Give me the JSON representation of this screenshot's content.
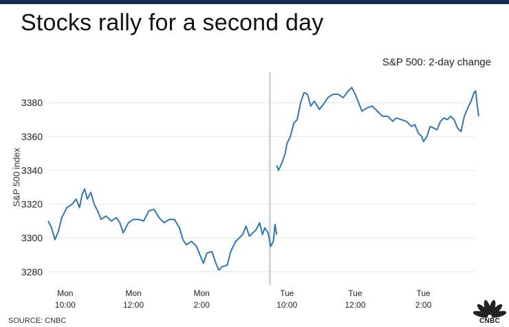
{
  "header": {
    "title": "Stocks rally for a second day",
    "subtitle": "S&P 500: 2-day change"
  },
  "footer": {
    "source": "SOURCE: CNBC",
    "logo_text": "CNBC"
  },
  "colors": {
    "line": "#2e75b6",
    "divider": "#c9d6e2",
    "grid": "#e6e6e6",
    "top_bar": "#1a2c52"
  },
  "chart_data": {
    "type": "line",
    "title": "Stocks rally for a second day",
    "subtitle": "S&P 500: 2-day change",
    "ylabel": "S&P 500 index",
    "xlabel": "",
    "ylim": [
      3273,
      3398
    ],
    "yticks": [
      3280,
      3300,
      3320,
      3340,
      3360,
      3380
    ],
    "grid": true,
    "xticks": [
      {
        "day": "Mon",
        "time": "10:00",
        "x": 0.5
      },
      {
        "day": "Mon",
        "time": "12:00",
        "x": 2.5
      },
      {
        "day": "Mon",
        "time": "2:00",
        "x": 4.5
      },
      {
        "day": "Tue",
        "time": "10:00",
        "x": 7.0
      },
      {
        "day": "Tue",
        "time": "12:00",
        "x": 9.0
      },
      {
        "day": "Tue",
        "time": "2:00",
        "x": 11.0
      }
    ],
    "xlim": [
      0,
      12.5
    ],
    "session_break": 6.5,
    "series": [
      {
        "session": "Mon",
        "points": [
          [
            0.0,
            3310
          ],
          [
            0.1,
            3306
          ],
          [
            0.2,
            3299
          ],
          [
            0.3,
            3304
          ],
          [
            0.4,
            3312
          ],
          [
            0.55,
            3318
          ],
          [
            0.7,
            3320
          ],
          [
            0.82,
            3323
          ],
          [
            0.92,
            3318
          ],
          [
            1.0,
            3326
          ],
          [
            1.07,
            3329
          ],
          [
            1.15,
            3323
          ],
          [
            1.25,
            3327
          ],
          [
            1.35,
            3320
          ],
          [
            1.45,
            3316
          ],
          [
            1.55,
            3311
          ],
          [
            1.7,
            3313
          ],
          [
            1.85,
            3310
          ],
          [
            2.0,
            3312
          ],
          [
            2.1,
            3309
          ],
          [
            2.2,
            3303
          ],
          [
            2.35,
            3309
          ],
          [
            2.5,
            3311
          ],
          [
            2.65,
            3311
          ],
          [
            2.8,
            3310
          ],
          [
            2.95,
            3316
          ],
          [
            3.1,
            3317
          ],
          [
            3.25,
            3312
          ],
          [
            3.4,
            3309
          ],
          [
            3.55,
            3311
          ],
          [
            3.7,
            3311
          ],
          [
            3.85,
            3306
          ],
          [
            3.95,
            3299
          ],
          [
            4.05,
            3296
          ],
          [
            4.2,
            3298
          ],
          [
            4.35,
            3295
          ],
          [
            4.45,
            3290
          ],
          [
            4.55,
            3285
          ],
          [
            4.65,
            3291
          ],
          [
            4.8,
            3292
          ],
          [
            4.9,
            3286
          ],
          [
            5.0,
            3281
          ],
          [
            5.1,
            3283
          ],
          [
            5.25,
            3284
          ],
          [
            5.35,
            3292
          ],
          [
            5.5,
            3298
          ],
          [
            5.6,
            3300
          ],
          [
            5.7,
            3302
          ],
          [
            5.8,
            3307
          ],
          [
            5.9,
            3301
          ],
          [
            6.0,
            3303
          ],
          [
            6.1,
            3305
          ],
          [
            6.2,
            3309
          ],
          [
            6.28,
            3302
          ],
          [
            6.35,
            3306
          ],
          [
            6.45,
            3303
          ],
          [
            6.52,
            3295
          ],
          [
            6.6,
            3298
          ],
          [
            6.65,
            3308
          ],
          [
            6.7,
            3302
          ]
        ]
      },
      {
        "session": "Tue",
        "points": [
          [
            6.7,
            3343
          ],
          [
            6.75,
            3340
          ],
          [
            6.8,
            3342
          ],
          [
            6.88,
            3346
          ],
          [
            6.95,
            3350
          ],
          [
            7.0,
            3356
          ],
          [
            7.1,
            3360
          ],
          [
            7.2,
            3368
          ],
          [
            7.3,
            3370
          ],
          [
            7.4,
            3380
          ],
          [
            7.5,
            3386
          ],
          [
            7.6,
            3385
          ],
          [
            7.7,
            3378
          ],
          [
            7.8,
            3381
          ],
          [
            7.95,
            3376
          ],
          [
            8.1,
            3380
          ],
          [
            8.2,
            3383
          ],
          [
            8.35,
            3385
          ],
          [
            8.5,
            3385
          ],
          [
            8.65,
            3383
          ],
          [
            8.8,
            3387
          ],
          [
            8.9,
            3389
          ],
          [
            9.0,
            3385
          ],
          [
            9.1,
            3380
          ],
          [
            9.2,
            3375
          ],
          [
            9.35,
            3377
          ],
          [
            9.5,
            3378
          ],
          [
            9.65,
            3375
          ],
          [
            9.8,
            3372
          ],
          [
            9.95,
            3372
          ],
          [
            10.1,
            3369
          ],
          [
            10.2,
            3371
          ],
          [
            10.35,
            3370
          ],
          [
            10.5,
            3369
          ],
          [
            10.65,
            3366
          ],
          [
            10.75,
            3367
          ],
          [
            10.85,
            3362
          ],
          [
            10.95,
            3360
          ],
          [
            11.0,
            3357
          ],
          [
            11.1,
            3360
          ],
          [
            11.2,
            3366
          ],
          [
            11.3,
            3365
          ],
          [
            11.4,
            3364
          ],
          [
            11.5,
            3369
          ],
          [
            11.6,
            3371
          ],
          [
            11.7,
            3370
          ],
          [
            11.8,
            3372
          ],
          [
            11.9,
            3370
          ],
          [
            12.0,
            3365
          ],
          [
            12.1,
            3363
          ],
          [
            12.2,
            3372
          ],
          [
            12.3,
            3377
          ],
          [
            12.4,
            3381
          ],
          [
            12.48,
            3386
          ],
          [
            12.53,
            3387
          ],
          [
            12.58,
            3378
          ],
          [
            12.62,
            3372
          ]
        ]
      }
    ]
  }
}
